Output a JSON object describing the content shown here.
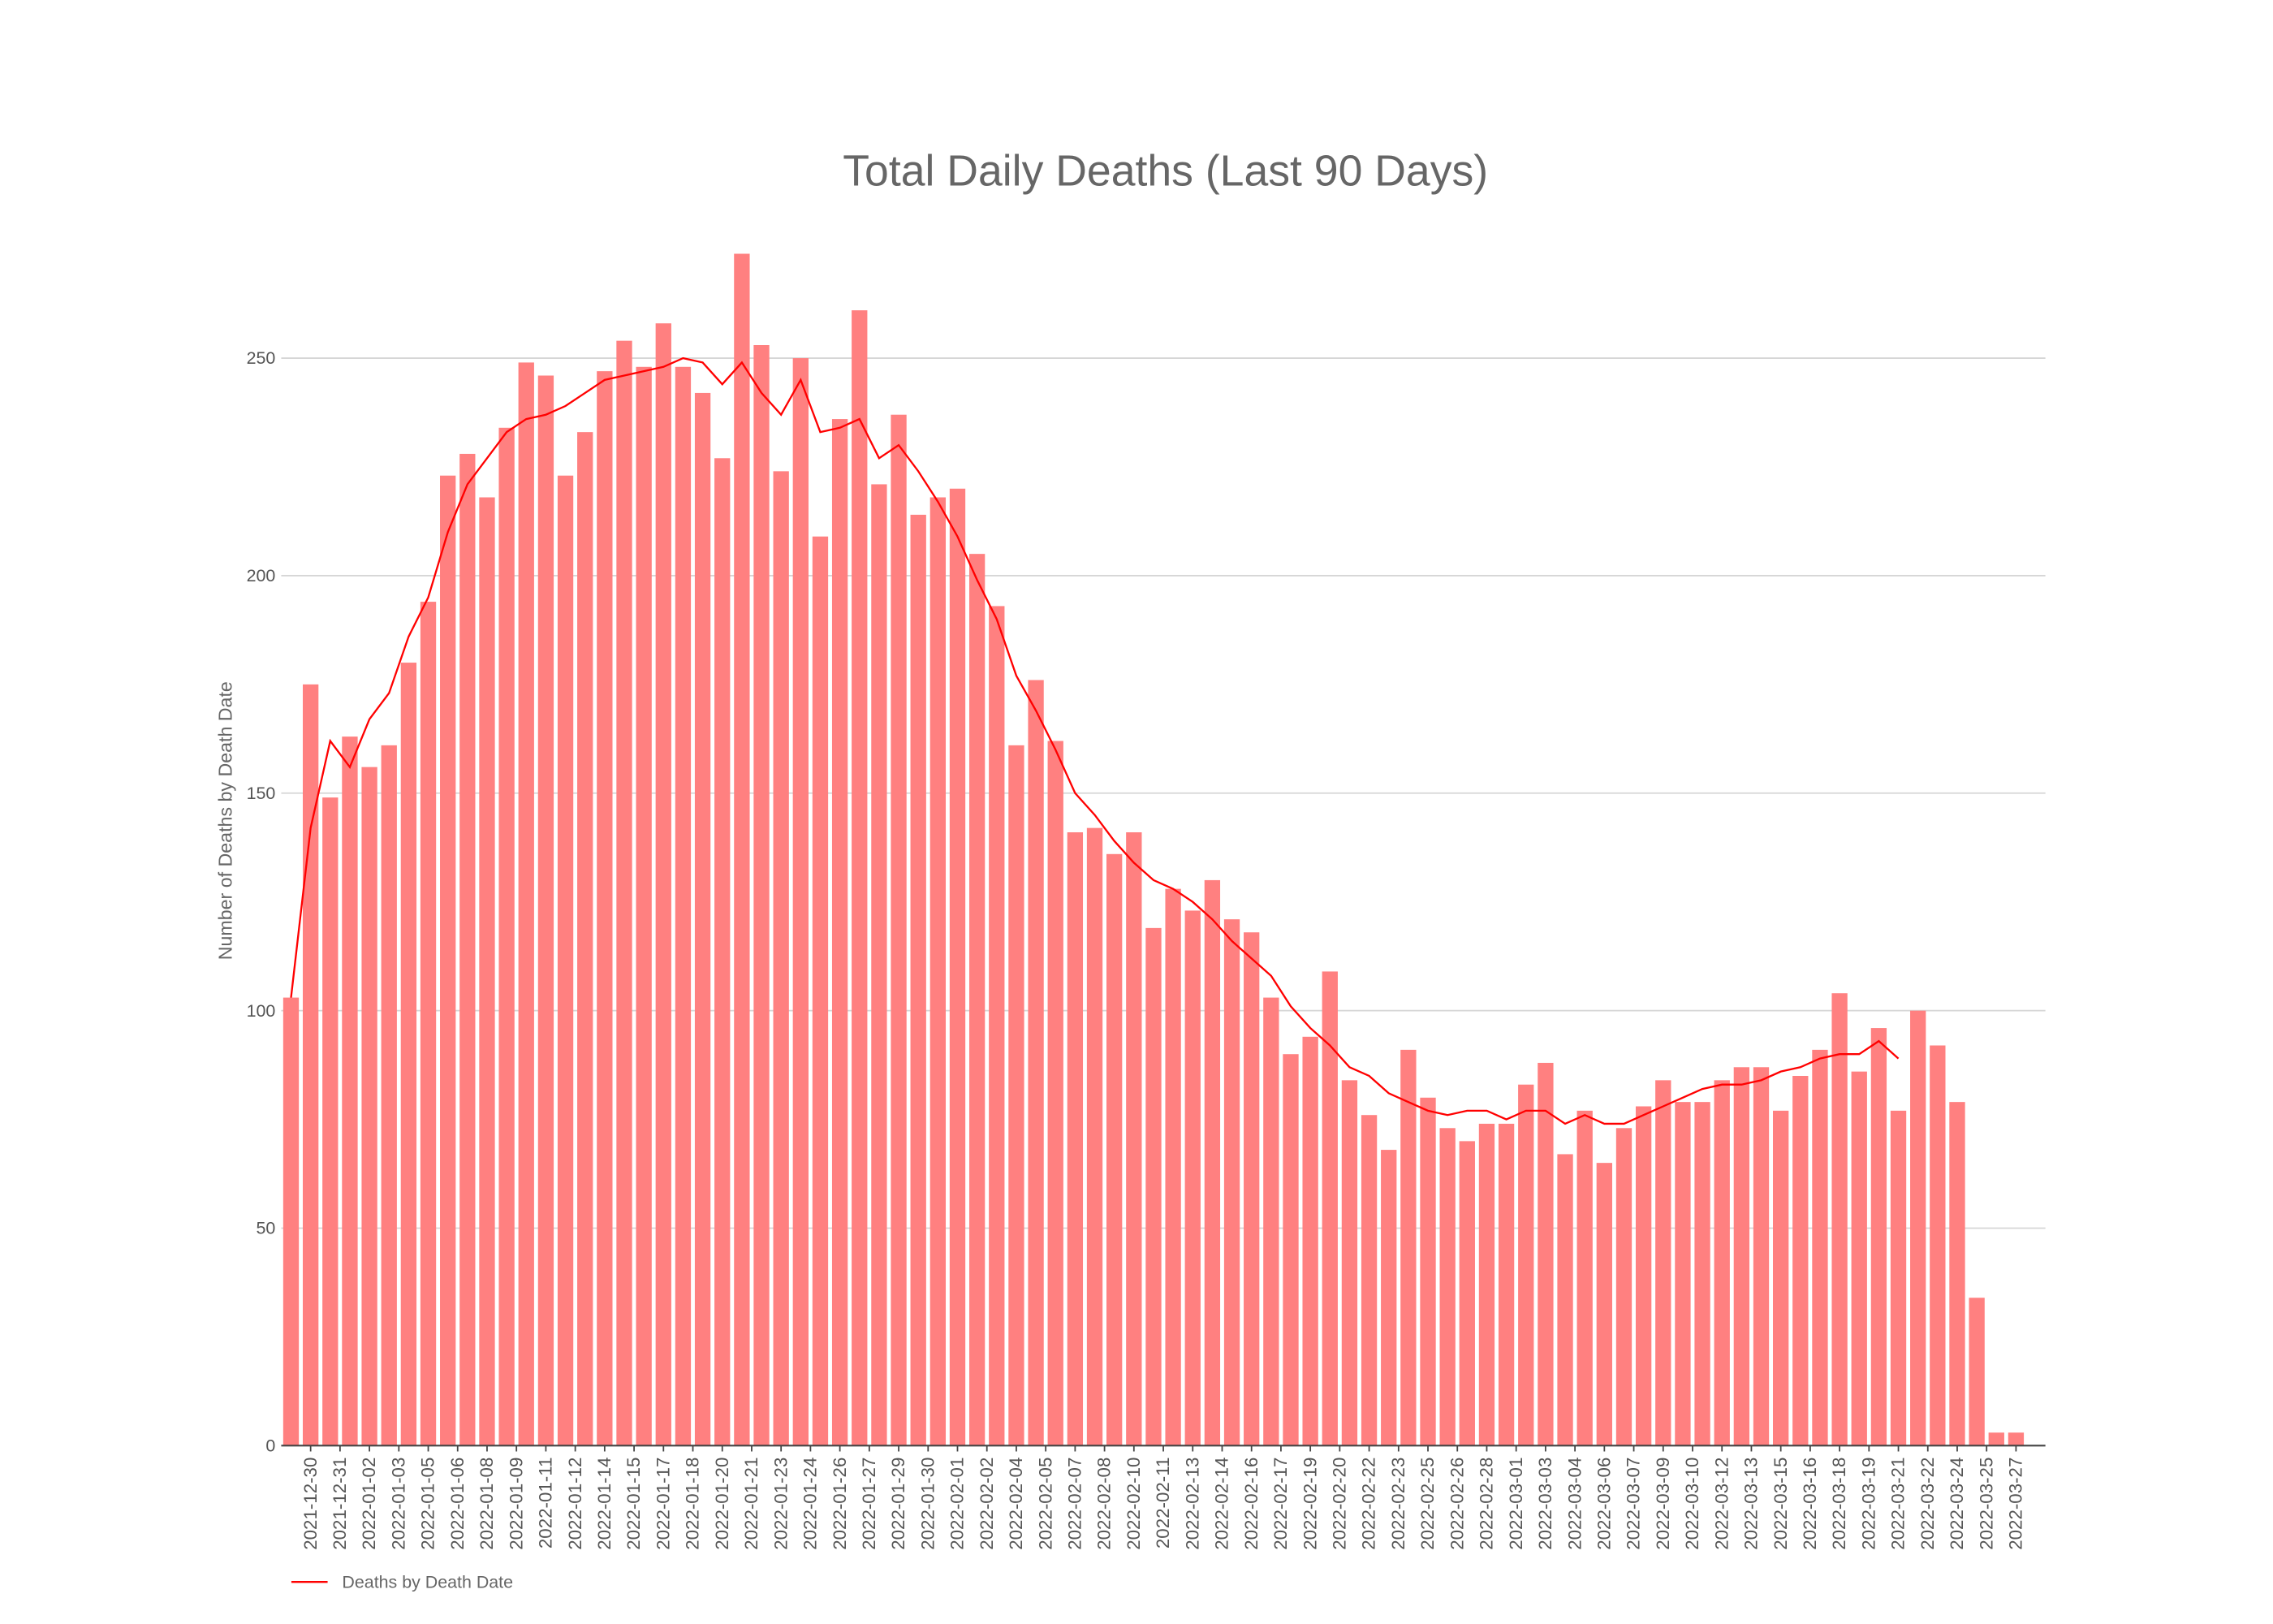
{
  "chart_data": {
    "type": "bar",
    "title": "Total Daily Deaths (Last 90 Days)",
    "y_label": "Number of Deaths by Death Date",
    "x": [
      "2021-12-29",
      "2021-12-30",
      "2021-12-31",
      "2022-01-01",
      "2022-01-02",
      "2022-01-03",
      "2022-01-04",
      "2022-01-05",
      "2022-01-06",
      "2022-01-07",
      "2022-01-08",
      "2022-01-09",
      "2022-01-10",
      "2022-01-11",
      "2022-01-12",
      "2022-01-13",
      "2022-01-14",
      "2022-01-15",
      "2022-01-16",
      "2022-01-17",
      "2022-01-18",
      "2022-01-19",
      "2022-01-20",
      "2022-01-21",
      "2022-01-22",
      "2022-01-23",
      "2022-01-24",
      "2022-01-25",
      "2022-01-26",
      "2022-01-27",
      "2022-01-28",
      "2022-01-29",
      "2022-01-30",
      "2022-01-31",
      "2022-02-01",
      "2022-02-02",
      "2022-02-03",
      "2022-02-04",
      "2022-02-05",
      "2022-02-06",
      "2022-02-07",
      "2022-02-08",
      "2022-02-09",
      "2022-02-10",
      "2022-02-11",
      "2022-02-12",
      "2022-02-13",
      "2022-02-14",
      "2022-02-15",
      "2022-02-16",
      "2022-02-17",
      "2022-02-18",
      "2022-02-19",
      "2022-02-20",
      "2022-02-21",
      "2022-02-22",
      "2022-02-23",
      "2022-02-24",
      "2022-02-25",
      "2022-02-26",
      "2022-02-27",
      "2022-02-28",
      "2022-03-01",
      "2022-03-02",
      "2022-03-03",
      "2022-03-04",
      "2022-03-05",
      "2022-03-06",
      "2022-03-07",
      "2022-03-08",
      "2022-03-09",
      "2022-03-10",
      "2022-03-11",
      "2022-03-12",
      "2022-03-13",
      "2022-03-14",
      "2022-03-15",
      "2022-03-16",
      "2022-03-17",
      "2022-03-18",
      "2022-03-19",
      "2022-03-20",
      "2022-03-21",
      "2022-03-22",
      "2022-03-23",
      "2022-03-24",
      "2022-03-25",
      "2022-03-26",
      "2022-03-27"
    ],
    "series": [
      {
        "type": "bar",
        "color": "#ff8080",
        "values": [
          103,
          175,
          149,
          163,
          156,
          161,
          180,
          194,
          223,
          228,
          218,
          234,
          249,
          246,
          223,
          233,
          247,
          254,
          248,
          258,
          248,
          242,
          227,
          274,
          253,
          224,
          250,
          209,
          236,
          261,
          221,
          237,
          214,
          218,
          220,
          205,
          193,
          161,
          176,
          162,
          141,
          142,
          136,
          141,
          119,
          128,
          123,
          130,
          121,
          118,
          103,
          90,
          94,
          109,
          84,
          76,
          68,
          91,
          80,
          73,
          70,
          74,
          74,
          83,
          88,
          67,
          77,
          65,
          73,
          78,
          84,
          79,
          79,
          84,
          87,
          87,
          77,
          85,
          91,
          104,
          86,
          96,
          77,
          100,
          92,
          79,
          34,
          3,
          3
        ]
      },
      {
        "type": "line",
        "name": "Deaths by Death Date",
        "color": "#ff0000",
        "values": [
          103,
          142,
          162,
          156,
          167,
          173,
          186,
          195,
          210,
          221,
          227,
          233,
          236,
          237,
          239,
          242,
          245,
          246,
          247,
          248,
          250,
          249,
          244,
          249,
          242,
          237,
          245,
          233,
          234,
          236,
          227,
          230,
          224,
          217,
          209,
          199,
          190,
          177,
          169,
          160,
          150,
          145,
          139,
          134,
          130,
          128,
          125,
          121,
          116,
          112,
          108,
          101,
          96,
          92,
          87,
          85,
          81,
          79,
          77,
          76,
          77,
          77,
          75,
          77,
          77,
          74,
          76,
          74,
          74,
          76,
          78,
          80,
          82,
          83,
          83,
          84,
          86,
          87,
          89,
          90,
          90,
          93,
          89,
          null,
          null,
          null,
          null,
          null,
          null
        ]
      }
    ],
    "xlim": [
      "2021-12-28 12:00",
      "2022-03-28 12:00"
    ],
    "xticks": [
      {
        "value": "2021-12-30 00:00",
        "label": "2021-12-30"
      },
      {
        "value": "2021-12-31 12:00",
        "label": "2021-12-31"
      },
      {
        "value": "2022-01-02 00:00",
        "label": "2022-01-02"
      },
      {
        "value": "2022-01-03 12:00",
        "label": "2022-01-03"
      },
      {
        "value": "2022-01-05 00:00",
        "label": "2022-01-05"
      },
      {
        "value": "2022-01-06 12:00",
        "label": "2022-01-06"
      },
      {
        "value": "2022-01-08 00:00",
        "label": "2022-01-08"
      },
      {
        "value": "2022-01-09 12:00",
        "label": "2022-01-09"
      },
      {
        "value": "2022-01-11 00:00",
        "label": "2022-01-11"
      },
      {
        "value": "2022-01-12 12:00",
        "label": "2022-01-12"
      },
      {
        "value": "2022-01-14 00:00",
        "label": "2022-01-14"
      },
      {
        "value": "2022-01-15 12:00",
        "label": "2022-01-15"
      },
      {
        "value": "2022-01-17 00:00",
        "label": "2022-01-17"
      },
      {
        "value": "2022-01-18 12:00",
        "label": "2022-01-18"
      },
      {
        "value": "2022-01-20 00:00",
        "label": "2022-01-20"
      },
      {
        "value": "2022-01-21 12:00",
        "label": "2022-01-21"
      },
      {
        "value": "2022-01-23 00:00",
        "label": "2022-01-23"
      },
      {
        "value": "2022-01-24 12:00",
        "label": "2022-01-24"
      },
      {
        "value": "2022-01-26 00:00",
        "label": "2022-01-26"
      },
      {
        "value": "2022-01-27 12:00",
        "label": "2022-01-27"
      },
      {
        "value": "2022-01-29 00:00",
        "label": "2022-01-29"
      },
      {
        "value": "2022-01-30 12:00",
        "label": "2022-01-30"
      },
      {
        "value": "2022-02-01 00:00",
        "label": "2022-02-01"
      },
      {
        "value": "2022-02-02 12:00",
        "label": "2022-02-02"
      },
      {
        "value": "2022-02-04 00:00",
        "label": "2022-02-04"
      },
      {
        "value": "2022-02-05 12:00",
        "label": "2022-02-05"
      },
      {
        "value": "2022-02-07 00:00",
        "label": "2022-02-07"
      },
      {
        "value": "2022-02-08 12:00",
        "label": "2022-02-08"
      },
      {
        "value": "2022-02-10 00:00",
        "label": "2022-02-10"
      },
      {
        "value": "2022-02-11 12:00",
        "label": "2022-02-11"
      },
      {
        "value": "2022-02-13 00:00",
        "label": "2022-02-13"
      },
      {
        "value": "2022-02-14 12:00",
        "label": "2022-02-14"
      },
      {
        "value": "2022-02-16 00:00",
        "label": "2022-02-16"
      },
      {
        "value": "2022-02-17 12:00",
        "label": "2022-02-17"
      },
      {
        "value": "2022-02-19 00:00",
        "label": "2022-02-19"
      },
      {
        "value": "2022-02-20 12:00",
        "label": "2022-02-20"
      },
      {
        "value": "2022-02-22 00:00",
        "label": "2022-02-22"
      },
      {
        "value": "2022-02-23 12:00",
        "label": "2022-02-23"
      },
      {
        "value": "2022-02-25 00:00",
        "label": "2022-02-25"
      },
      {
        "value": "2022-02-26 12:00",
        "label": "2022-02-26"
      },
      {
        "value": "2022-02-28 00:00",
        "label": "2022-02-28"
      },
      {
        "value": "2022-03-01 12:00",
        "label": "2022-03-01"
      },
      {
        "value": "2022-03-03 00:00",
        "label": "2022-03-03"
      },
      {
        "value": "2022-03-04 12:00",
        "label": "2022-03-04"
      },
      {
        "value": "2022-03-06 00:00",
        "label": "2022-03-06"
      },
      {
        "value": "2022-03-07 12:00",
        "label": "2022-03-07"
      },
      {
        "value": "2022-03-09 00:00",
        "label": "2022-03-09"
      },
      {
        "value": "2022-03-10 12:00",
        "label": "2022-03-10"
      },
      {
        "value": "2022-03-12 00:00",
        "label": "2022-03-12"
      },
      {
        "value": "2022-03-13 12:00",
        "label": "2022-03-13"
      },
      {
        "value": "2022-03-15 00:00",
        "label": "2022-03-15"
      },
      {
        "value": "2022-03-16 12:00",
        "label": "2022-03-16"
      },
      {
        "value": "2022-03-18 00:00",
        "label": "2022-03-18"
      },
      {
        "value": "2022-03-19 12:00",
        "label": "2022-03-19"
      },
      {
        "value": "2022-03-21 00:00",
        "label": "2022-03-21"
      },
      {
        "value": "2022-03-22 12:00",
        "label": "2022-03-22"
      },
      {
        "value": "2022-03-24 00:00",
        "label": "2022-03-24"
      },
      {
        "value": "2022-03-25 12:00",
        "label": "2022-03-25"
      },
      {
        "value": "2022-03-27 00:00",
        "label": "2022-03-27"
      }
    ],
    "ylim": [
      0,
      280
    ],
    "yticks": [
      0,
      50,
      100,
      150,
      200,
      250
    ],
    "grid": true,
    "legend": "bottom-left"
  }
}
